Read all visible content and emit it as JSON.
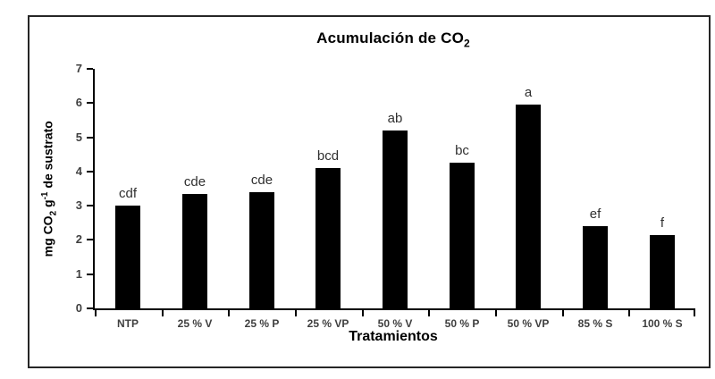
{
  "figure": {
    "title": {
      "text": "Acumulación de CO",
      "sub": "2"
    },
    "ylabel": {
      "pre": "mg CO",
      "sub": "2",
      "mid": " g",
      "sup": "-1",
      "post": " de sustrato"
    },
    "xlabel": "Tratamientos"
  },
  "chart_data": {
    "type": "bar",
    "title": "Acumulación de CO2",
    "xlabel": "Tratamientos",
    "ylabel": "mg CO2 g-1 de sustrato",
    "categories": [
      "NTP",
      "25 % V",
      "25 % P",
      "25 % VP",
      "50 % V",
      "50 % P",
      "50 % VP",
      "85 % S",
      "100 % S"
    ],
    "values": [
      3.0,
      3.35,
      3.4,
      4.1,
      5.2,
      4.25,
      5.95,
      2.4,
      2.15
    ],
    "bar_labels": [
      "cdf",
      "cde",
      "cde",
      "bcd",
      "ab",
      "bc",
      "a",
      "ef",
      "f"
    ],
    "y_ticks": [
      0,
      1,
      2,
      3,
      4,
      5,
      6,
      7
    ],
    "ylim": [
      0,
      7
    ],
    "bar_color": "#000000",
    "axis_color": "#000000",
    "tick_label_color": "#3f3f3f",
    "title_color": "#000000",
    "grid": false,
    "legend": false
  }
}
